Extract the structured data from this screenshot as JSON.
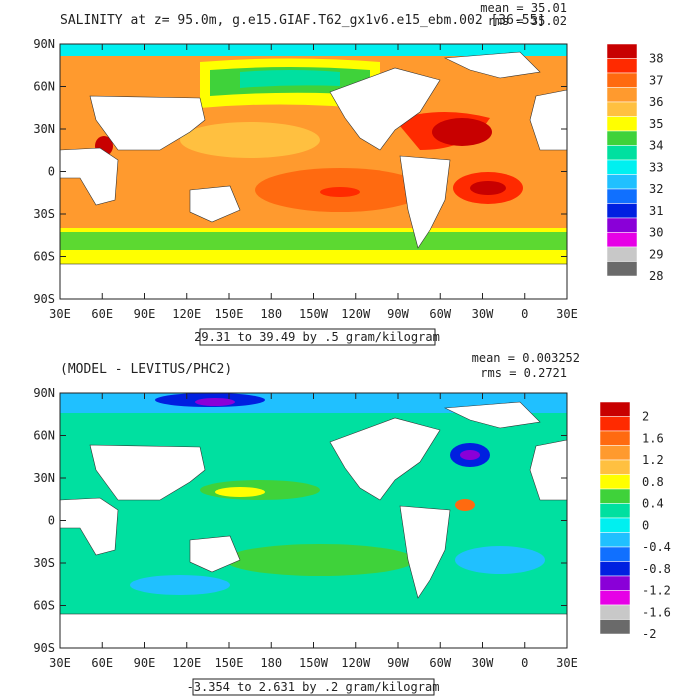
{
  "chart_data": [
    {
      "type": "heatmap",
      "title": "SALINITY at z=  95.0m, g.e15.GIAF.T62_gx1v6.e15_ebm.002 [36-55]",
      "stats": {
        "mean": "mean = 35.01",
        "rms": "rms = 35.02"
      },
      "x_ticks": [
        "30E",
        "60E",
        "90E",
        "120E",
        "150E",
        "180",
        "150W",
        "120W",
        "90W",
        "60W",
        "30W",
        "0",
        "30E"
      ],
      "y_ticks": [
        "90N",
        "60N",
        "30N",
        "0",
        "30S",
        "60S",
        "90S"
      ],
      "range_label": "29.31 to 39.49 by .5 gram/kilogram",
      "colorbar": {
        "labels": [
          "38",
          "37",
          "36",
          "35",
          "34",
          "33",
          "32",
          "31",
          "30",
          "29",
          "28"
        ],
        "colors": [
          "#c80000",
          "#ff2a00",
          "#ff6a10",
          "#ff9a2e",
          "#ffc040",
          "#ffff00",
          "#3fd23a",
          "#00e0a0",
          "#00f0f0",
          "#20c0ff",
          "#1070ff",
          "#0020e0",
          "#8a00d8",
          "#e600e6",
          "#c8c8c8",
          "#6a6a6a"
        ]
      }
    },
    {
      "type": "heatmap",
      "title": "(MODEL - LEVITUS/PHC2)",
      "stats": {
        "mean": "mean = 0.003252",
        "rms": "rms = 0.2721"
      },
      "x_ticks": [
        "30E",
        "60E",
        "90E",
        "120E",
        "150E",
        "180",
        "150W",
        "120W",
        "90W",
        "60W",
        "30W",
        "0",
        "30E"
      ],
      "y_ticks": [
        "90N",
        "60N",
        "30N",
        "0",
        "30S",
        "60S",
        "90S"
      ],
      "range_label": "-3.354 to 2.631 by .2 gram/kilogram",
      "colorbar": {
        "labels": [
          "2",
          "1.6",
          "1.2",
          "0.8",
          "0.4",
          "0",
          "-0.4",
          "-0.8",
          "-1.2",
          "-1.6",
          "-2"
        ],
        "colors": [
          "#c80000",
          "#ff2a00",
          "#ff6a10",
          "#ff9a2e",
          "#ffc040",
          "#ffff00",
          "#3fd23a",
          "#00e0a0",
          "#00f0f0",
          "#20c0ff",
          "#1070ff",
          "#0020e0",
          "#8a00d8",
          "#e600e6",
          "#c8c8c8",
          "#6a6a6a"
        ]
      }
    }
  ]
}
